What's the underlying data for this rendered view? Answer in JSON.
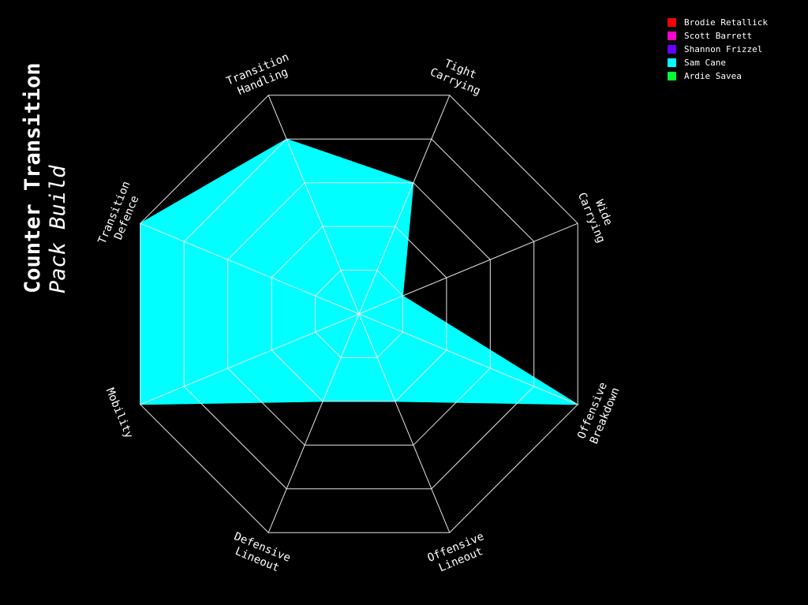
{
  "chart": {
    "title": "Counter Transition",
    "subtitle": "Pack Build"
  },
  "chart_data": {
    "type": "radar",
    "title": "Counter Transition",
    "subtitle": "Pack Build",
    "axes": [
      "Transition\nHandling",
      "Tight\nCarrying",
      "Wide\nCarrying",
      "Offensive\nBreakdown",
      "Offensive\nLineout",
      "Defensive\nLineout",
      "Mobility",
      "Transition\nDefence"
    ],
    "rlim": [
      0,
      5
    ],
    "rings": 5,
    "grid": true,
    "legend_position": "top-right",
    "series": [
      {
        "name": "Brodie Retallick",
        "color": "#ff0000",
        "values": [
          0,
          0,
          0,
          0,
          0,
          0,
          0,
          0
        ]
      },
      {
        "name": "Scott Barrett",
        "color": "#ff00cc",
        "values": [
          0,
          0,
          0,
          0,
          0,
          0,
          0,
          0
        ]
      },
      {
        "name": "Shannon Frizzel",
        "color": "#6600ff",
        "values": [
          0,
          0,
          0,
          0,
          0,
          0,
          0,
          0
        ]
      },
      {
        "name": "Sam Cane",
        "color": "#00ffff",
        "values": [
          4,
          3,
          1,
          5,
          2,
          2,
          5,
          5
        ]
      },
      {
        "name": "Ardie Savea",
        "color": "#00ff33",
        "values": [
          0,
          0,
          0,
          0,
          0,
          0,
          0,
          0
        ]
      }
    ]
  }
}
